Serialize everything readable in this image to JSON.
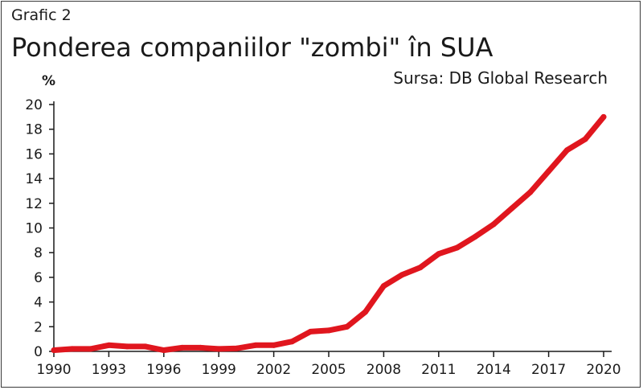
{
  "chart_data": {
    "type": "line",
    "label": "Grafic 2",
    "title": "Ponderea companiilor \"zombi\" în SUA",
    "source": "Sursa: DB Global Research",
    "ylabel": "%",
    "xlabel": "",
    "xlim": [
      1990,
      2020
    ],
    "ylim": [
      0,
      20
    ],
    "grid": false,
    "x_ticks": [
      "1990",
      "1993",
      "1996",
      "1999",
      "2002",
      "2005",
      "2008",
      "2011",
      "2014",
      "2017",
      "2020"
    ],
    "y_ticks": [
      "0",
      "2",
      "4",
      "6",
      "8",
      "10",
      "12",
      "14",
      "16",
      "18",
      "20"
    ],
    "colors": {
      "line": "#e0161e",
      "text": "#1a1a1a",
      "axis": "#1a1a1a",
      "frame": "#3a3a3a"
    },
    "series": [
      {
        "x": [
          1990,
          1991,
          1992,
          1993,
          1994,
          1995,
          1996,
          1997,
          1998,
          1999,
          2000,
          2001,
          2002,
          2003,
          2004,
          2005,
          2006,
          2007,
          2008,
          2009,
          2010,
          2011,
          2012,
          2013,
          2014,
          2015,
          2016,
          2017,
          2018,
          2019,
          2020
        ],
        "values": [
          0.1,
          0.2,
          0.2,
          0.5,
          0.4,
          0.4,
          0.1,
          0.3,
          0.3,
          0.2,
          0.25,
          0.5,
          0.5,
          0.8,
          1.6,
          1.7,
          2.0,
          3.2,
          5.3,
          6.2,
          6.8,
          7.9,
          8.4,
          9.3,
          10.3,
          11.6,
          12.9,
          14.6,
          16.3,
          17.2,
          19.0
        ]
      }
    ]
  }
}
